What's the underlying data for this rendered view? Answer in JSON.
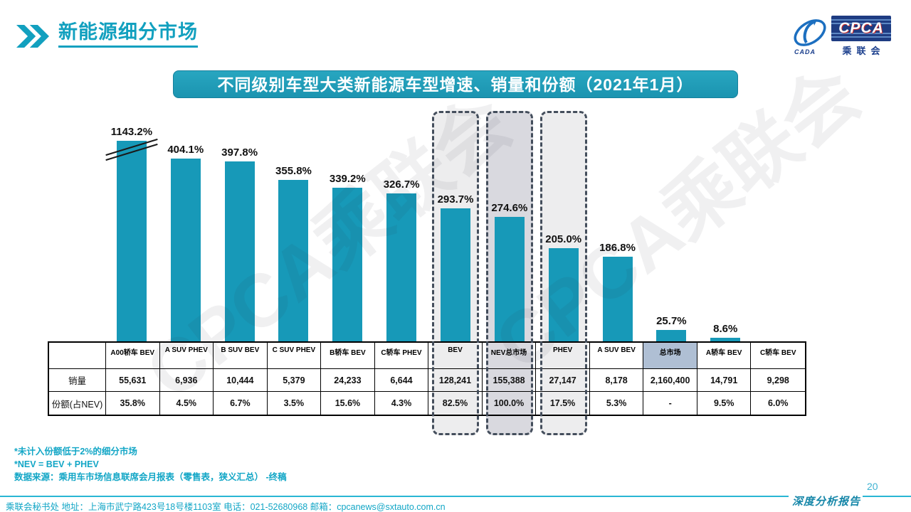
{
  "slide": {
    "title": "新能源细分市场",
    "page_number": "20",
    "report_label": "深度分析报告",
    "watermark_text": "CPCA乘联会"
  },
  "logo": {
    "cpca": "CPCA",
    "sub": "乘联会",
    "cada": "CADA"
  },
  "banner_title": "不同级别车型大类新能源车型增速、销量和份额（2021年1月）",
  "chart_data": {
    "type": "bar",
    "title": "不同级别车型大类新能源车型增速、销量和份额（2021年1月）",
    "unit": "%",
    "categories": [
      "A00轿车 BEV",
      "A SUV PHEV",
      "B SUV BEV",
      "C SUV PHEV",
      "B轿车 BEV",
      "C轿车 PHEV",
      "BEV",
      "NEV总市场",
      "PHEV",
      "A SUV BEV",
      "总市场",
      "A轿车 BEV",
      "C轿车 BEV"
    ],
    "series": [
      {
        "name": "增速",
        "values": [
          1143.2,
          404.1,
          397.8,
          355.8,
          339.2,
          326.7,
          293.7,
          274.6,
          205.0,
          186.8,
          25.7,
          8.6,
          null
        ]
      },
      {
        "name": "销量",
        "values": [
          "55,631",
          "6,936",
          "10,444",
          "5,379",
          "24,233",
          "6,644",
          "128,241",
          "155,388",
          "27,147",
          "8,178",
          "2,160,400",
          "14,791",
          "9,298"
        ]
      },
      {
        "name": "份额(占NEV)",
        "values": [
          "35.8%",
          "4.5%",
          "6.7%",
          "3.5%",
          "15.6%",
          "4.3%",
          "82.5%",
          "100.0%",
          "17.5%",
          "5.3%",
          "-",
          "9.5%",
          "6.0%"
        ]
      }
    ],
    "row_labels": {
      "sales": "销量",
      "share": "份额(占NEV)"
    },
    "axis_break_index": 0,
    "highlighted_indices": [
      6,
      7,
      8
    ],
    "highlight_fills": [
      "#EDEDEE",
      "#D9D9DF",
      "#EDEDEE"
    ],
    "market_col_index": 10,
    "market_header_fill": "#AFBFD4",
    "bar_color": "#1799B8",
    "grid": false,
    "legend_position": "none"
  },
  "notes": [
    "*未计入份额低于2%的细分市场",
    "*NEV = BEV + PHEV",
    "数据来源：乘用车市场信息联席会月报表（零售表，狭义汇总） -终稿"
  ],
  "footer": {
    "contact": "乘联会秘书处   地址：上海市武宁路423号18号楼1103室   电话：021-52680968   邮箱：cpcanews@sxtauto.com.cn"
  }
}
